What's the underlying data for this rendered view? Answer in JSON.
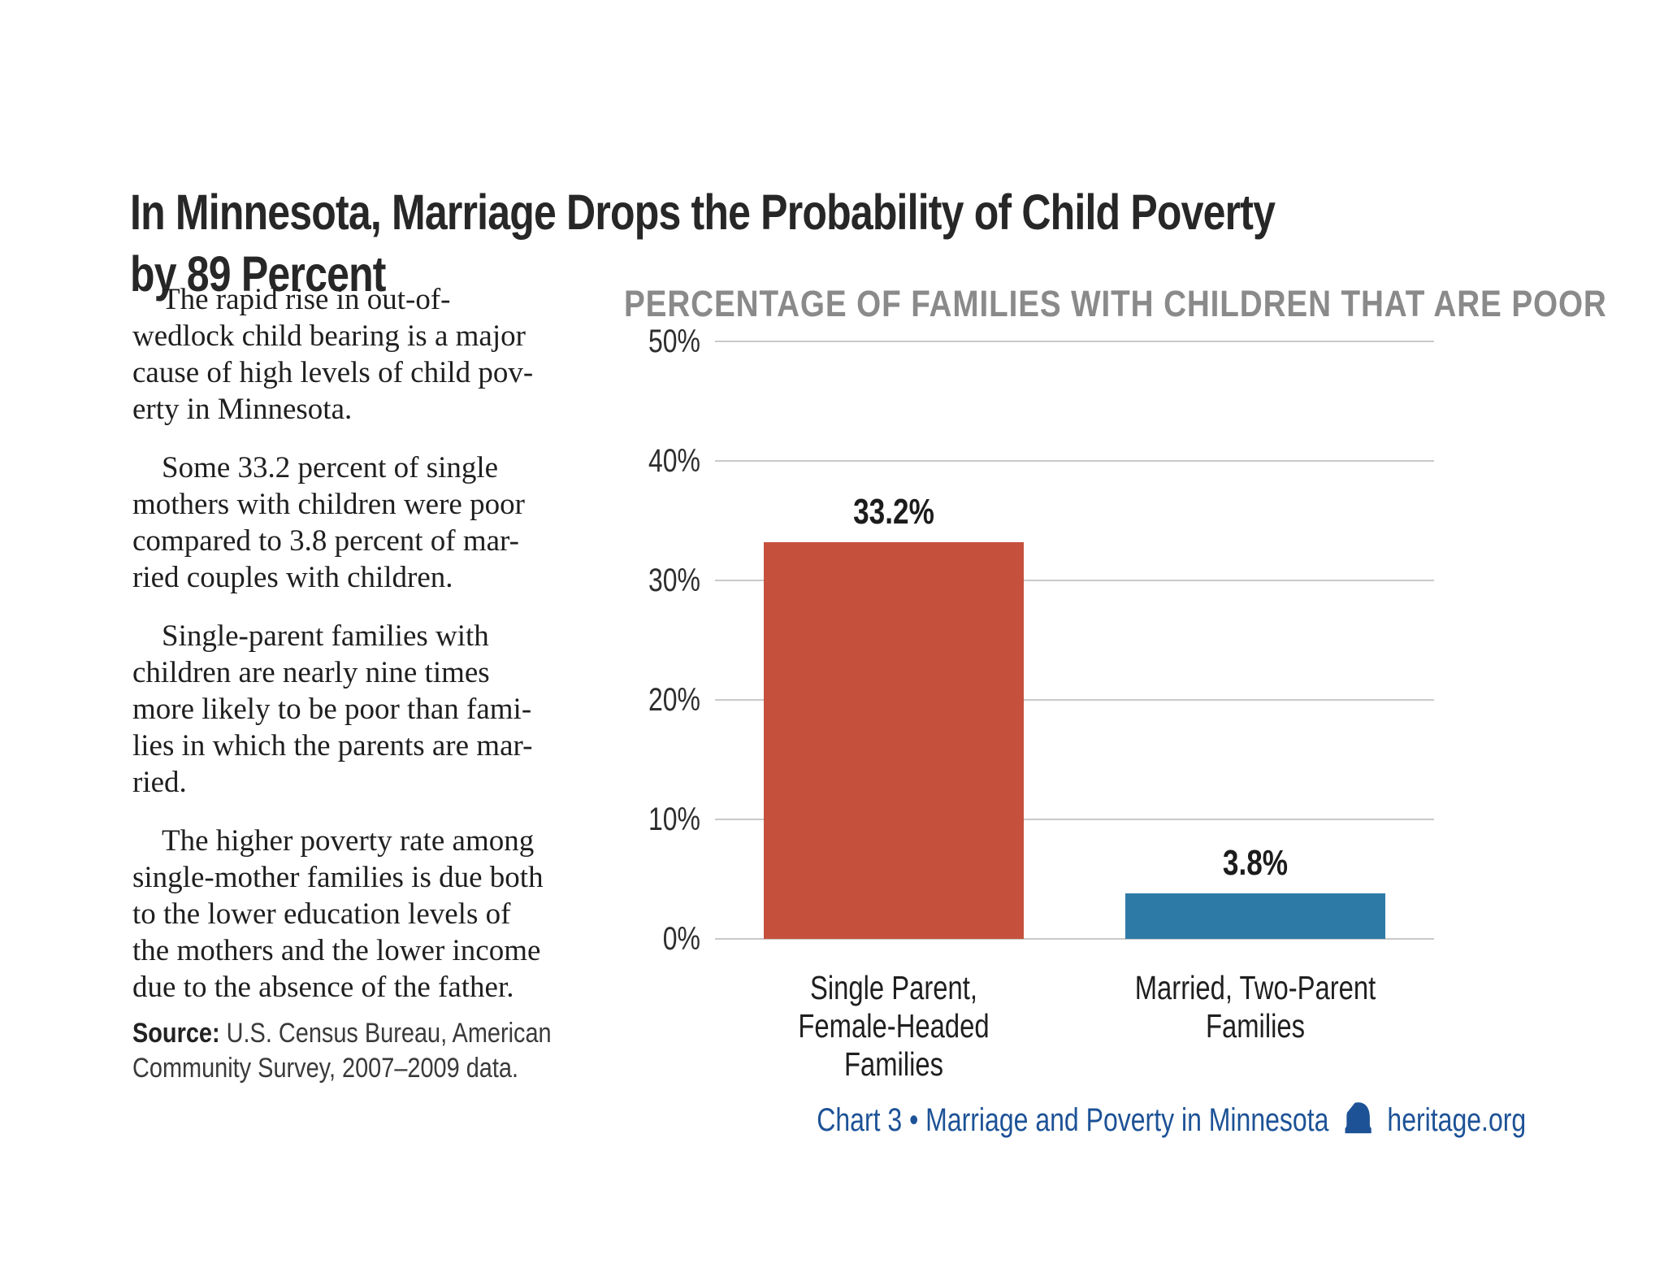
{
  "page": {
    "title_lines": [
      "In Minnesota, Marriage Drops the Probability of Child Poverty",
      "by 89 Percent"
    ]
  },
  "article": {
    "paragraphs": [
      [
        "The rapid rise in out-of-",
        "wedlock child bearing is a major",
        "cause of high levels of child pov-",
        "erty in Minnesota."
      ],
      [
        "Some 33.2 percent of single",
        "mothers with children were poor",
        "compared to 3.8 percent of mar-",
        "ried couples with children."
      ],
      [
        "Single-parent families with",
        "children are nearly nine times",
        "more likely to be poor than fami-",
        "lies in which the parents are mar-",
        "ried."
      ],
      [
        "The higher poverty rate among",
        "single-mother families is due both",
        "to the lower education levels of",
        "the mothers and the lower income",
        "due to the absence of the father."
      ]
    ],
    "source": {
      "label": "Source:",
      "text_lines": [
        "U.S. Census Bureau, American",
        "Community Survey, 2007–2009 data."
      ]
    }
  },
  "chart_data": {
    "type": "bar",
    "title": "PERCENTAGE OF FAMILIES WITH CHILDREN THAT ARE POOR",
    "title_color": "#8A8A8A",
    "categories": [
      [
        "Single Parent,",
        "Female-Headed",
        "Families"
      ],
      [
        "Married, Two-Parent",
        "Families"
      ]
    ],
    "values": [
      33.2,
      3.8
    ],
    "value_labels": [
      "33.2%",
      "3.8%"
    ],
    "bar_colors": [
      "#C5513C",
      "#2E7AA6"
    ],
    "ylim": [
      0,
      50
    ],
    "yticks": [
      0,
      10,
      20,
      30,
      40,
      50
    ],
    "ytick_labels": [
      "0%",
      "10%",
      "20%",
      "30%",
      "40%",
      "50%"
    ],
    "grid": true,
    "legend": "none",
    "gridline_color": "#C9C9C9"
  },
  "footer": {
    "text": "Chart 3 • Marriage and Poverty in Minnesota",
    "site": "heritage.org",
    "icon": "liberty-bell-icon",
    "color": "#1D5296"
  }
}
